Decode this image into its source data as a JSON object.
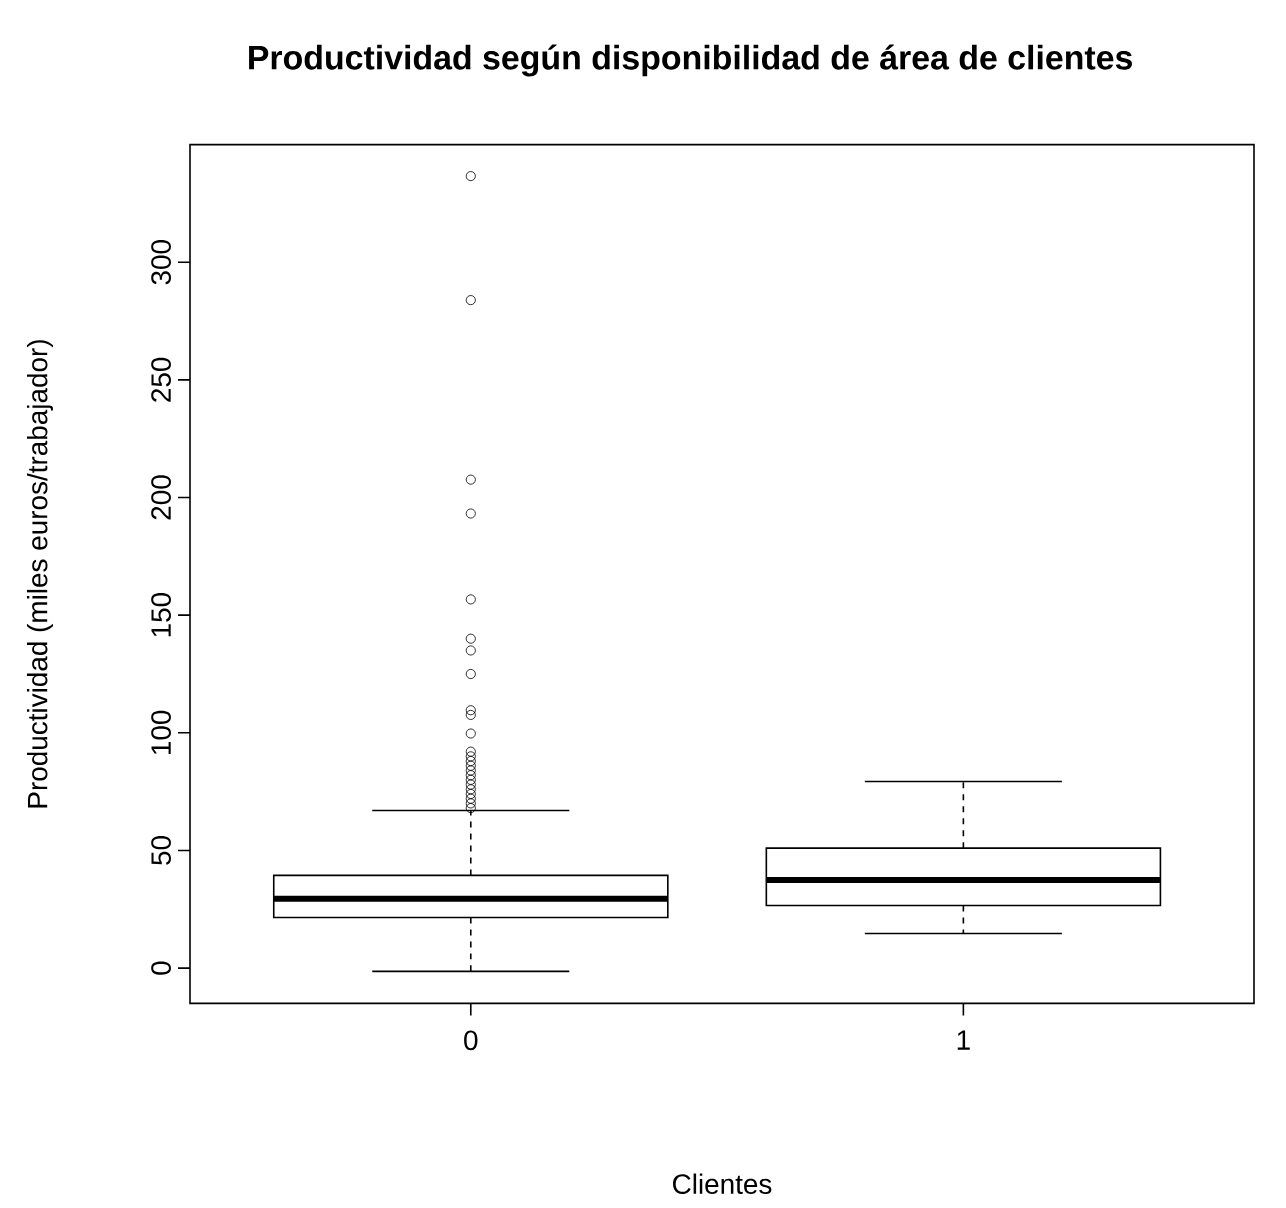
{
  "chart_data": {
    "type": "box",
    "title": "Productividad según disponibilidad de área de clientes",
    "xlabel": "Clientes",
    "ylabel": "Productividad (miles euros/trabajador)",
    "categories": [
      "0",
      "1"
    ],
    "boxes": [
      {
        "low": -1.4,
        "q1": 21.5,
        "median": 29.5,
        "q3": 39.4,
        "high": 67,
        "outliers": [
          336.6,
          283.9,
          207.6,
          193.2,
          156.7,
          140,
          135,
          125,
          109.6,
          107.6,
          99.7,
          92,
          90,
          88,
          86,
          84,
          82,
          80,
          78,
          76,
          74,
          72,
          70,
          68
        ]
      },
      {
        "low": 14.7,
        "q1": 26.6,
        "median": 37.4,
        "q3": 51,
        "high": 79.3
      }
    ],
    "ylim": [
      -15,
      350
    ],
    "yticks": [
      0,
      50,
      100,
      150,
      200,
      250,
      300
    ],
    "grid": false
  }
}
